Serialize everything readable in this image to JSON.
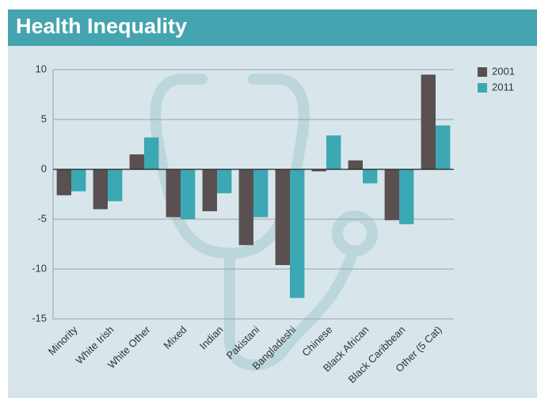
{
  "chart_data": {
    "type": "bar",
    "title": "Health Inequality",
    "categories": [
      "Minority",
      "White Irish",
      "White Other",
      "Mixed",
      "Indian",
      "Pakistani",
      "Bangladeshi",
      "Chinese",
      "Black African",
      "Black Caribbean",
      "Other (5 Cat)"
    ],
    "series": [
      {
        "name": "2001",
        "color": "#5a5051",
        "values": [
          -2.6,
          -4.0,
          1.5,
          -4.8,
          -4.2,
          -7.6,
          -9.6,
          -0.2,
          0.9,
          -5.1,
          9.5
        ]
      },
      {
        "name": "2011",
        "color": "#3ba8b3",
        "values": [
          -2.2,
          -3.2,
          3.2,
          -5.0,
          -2.4,
          -4.8,
          -12.9,
          3.4,
          -1.4,
          -5.5,
          4.4
        ]
      }
    ],
    "ylim": [
      -15,
      10
    ],
    "yticks": [
      10,
      5,
      0,
      -5,
      -10,
      -15
    ],
    "grid": true,
    "legend": "top-right"
  }
}
